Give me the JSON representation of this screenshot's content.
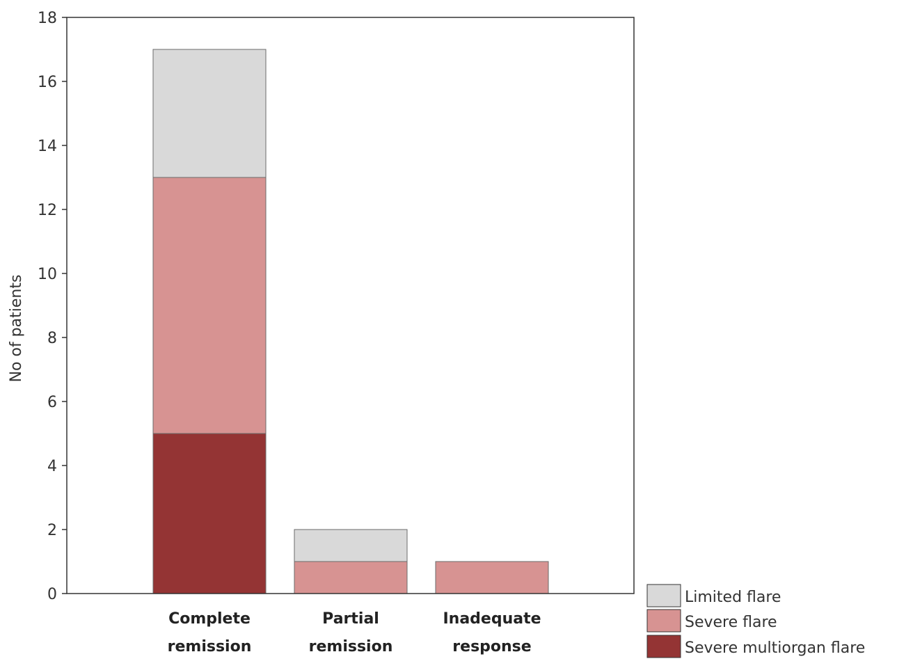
{
  "chart_data": {
    "type": "bar",
    "stacked": true,
    "title": "",
    "xlabel": "",
    "ylabel": "No of patients",
    "ylim": [
      0,
      18
    ],
    "yticks": [
      0,
      2,
      4,
      6,
      8,
      10,
      12,
      14,
      16,
      18
    ],
    "grid": false,
    "legend_position": "bottom-right",
    "categories": [
      [
        "Complete",
        "remission"
      ],
      [
        "Partial",
        "remission"
      ],
      [
        "Inadequate",
        "response"
      ]
    ],
    "series": [
      {
        "name": "Severe multiorgan flare",
        "color": "#943434",
        "values": [
          5,
          0,
          0
        ]
      },
      {
        "name": "Severe flare",
        "color": "#d79392",
        "values": [
          8,
          1,
          1
        ]
      },
      {
        "name": "Limited flare",
        "color": "#d9d9d9",
        "values": [
          4,
          1,
          0
        ]
      }
    ],
    "legend_order": [
      "Limited flare",
      "Severe flare",
      "Severe multiorgan flare"
    ]
  }
}
